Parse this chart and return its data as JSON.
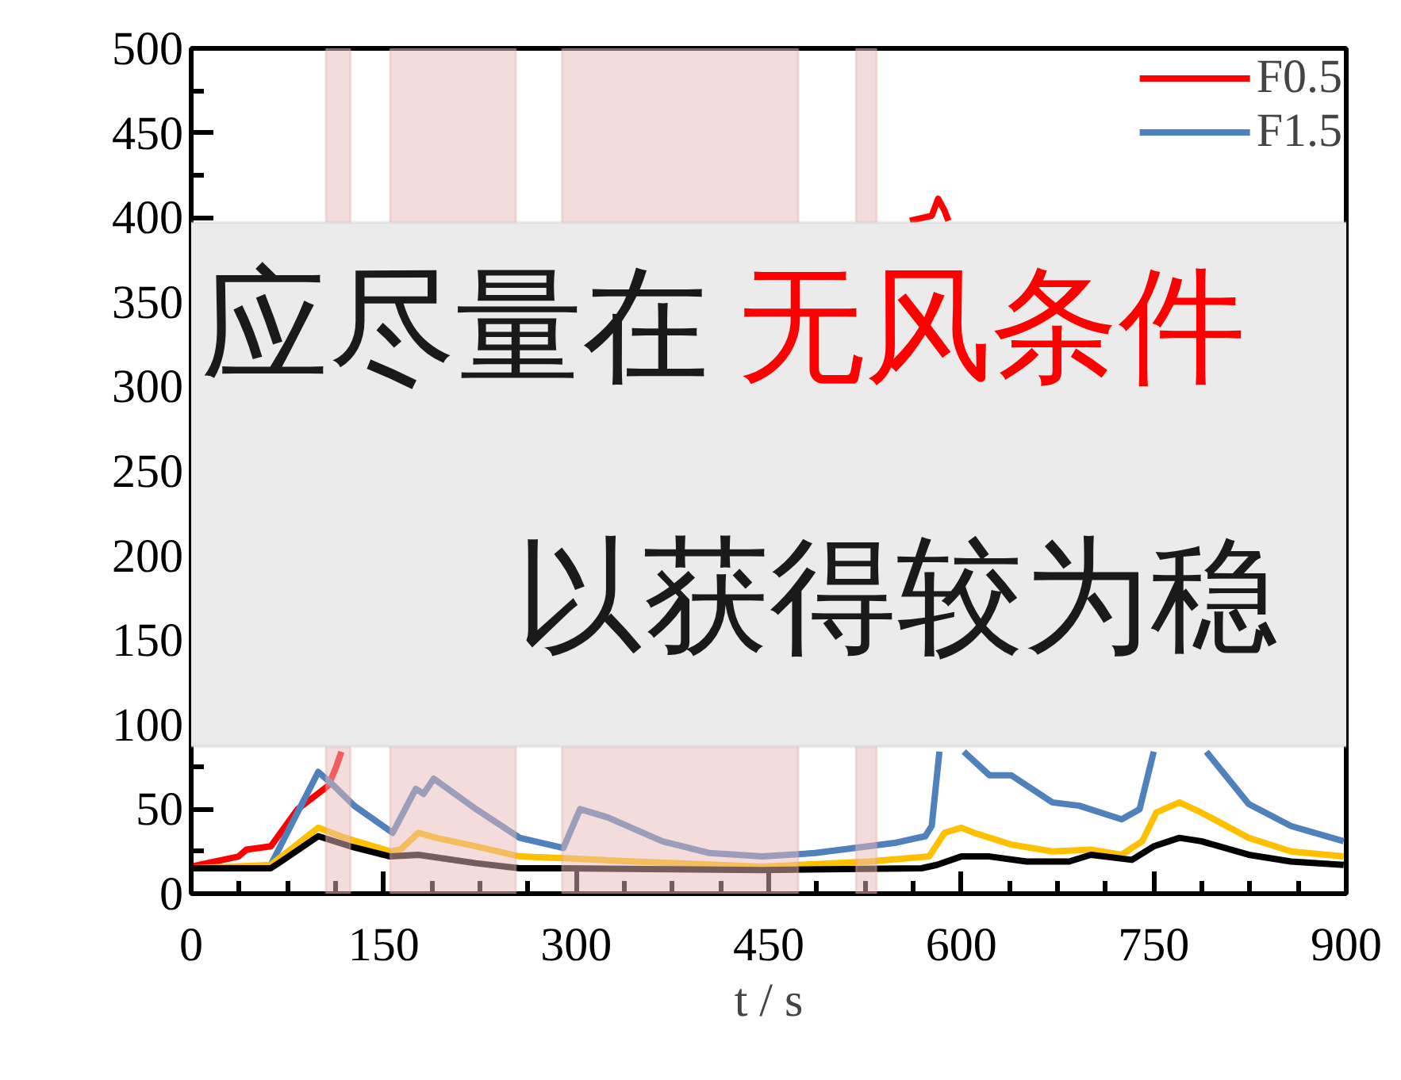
{
  "chart_data": {
    "type": "line",
    "xlabel": "t / s",
    "xlim": [
      0,
      900
    ],
    "xticks": [
      0,
      150,
      300,
      450,
      600,
      750,
      900
    ],
    "ylim": [
      0,
      500
    ],
    "yticks": [
      0,
      50,
      100,
      150,
      200,
      250,
      300,
      350,
      400,
      450,
      500
    ],
    "grid": false,
    "legend": "top right",
    "line_style": "solid",
    "marker": "none",
    "annotations": [
      "应尽量在",
      "无风条件",
      "以获得较为稳"
    ],
    "bands": [
      {
        "axis": "x",
        "from": 105,
        "to": 124,
        "color": "#eab9b9"
      },
      {
        "axis": "x",
        "from": 155,
        "to": 253,
        "color": "#eab9b9"
      },
      {
        "axis": "x",
        "from": 289,
        "to": 473,
        "color": "#eab9b9"
      },
      {
        "axis": "x",
        "from": 518,
        "to": 534,
        "color": "#eab9b9"
      }
    ],
    "series": [
      {
        "name": "F0.5",
        "color": "#ff0000",
        "x": [
          0,
          37,
          43,
          62,
          83,
          107,
          113,
          117,
          118,
          560,
          577,
          582,
          587,
          590
        ],
        "values": [
          16,
          22,
          26,
          28,
          50,
          64,
          75,
          84,
          null,
          398,
          401,
          411,
          404,
          398
        ]
      },
      {
        "name": "F1.5",
        "color": "#4f81bd",
        "x": [
          62,
          99,
          111,
          127,
          157,
          175,
          181,
          189,
          222,
          256,
          290,
          303,
          325,
          367,
          404,
          445,
          486,
          548,
          572,
          577,
          583,
          584,
          601,
          602,
          622,
          639,
          671,
          692,
          725,
          739,
          750,
          751,
          790,
          791,
          824,
          857,
          898
        ],
        "values": [
          17,
          72,
          64,
          52,
          36,
          62,
          59,
          68,
          50,
          33,
          27,
          50,
          45,
          31,
          24,
          22,
          24,
          30,
          34,
          40,
          84,
          null,
          null,
          84,
          70,
          70,
          54,
          52,
          44,
          50,
          84,
          null,
          null,
          84,
          53,
          40,
          31
        ]
      },
      {
        "color": "#ffc000",
        "x": [
          0,
          62,
          99,
          120,
          155,
          163,
          177,
          191,
          222,
          256,
          290,
          346,
          445,
          528,
          575,
          587,
          600,
          610,
          639,
          671,
          701,
          725,
          741,
          752,
          770,
          787,
          824,
          857,
          898
        ],
        "values": [
          15,
          17,
          39,
          33,
          25,
          26,
          36,
          33,
          28,
          22,
          21,
          19,
          16,
          19,
          22,
          36,
          39,
          36,
          29,
          25,
          26,
          23,
          31,
          48,
          54,
          48,
          33,
          25,
          22
        ]
      },
      {
        "color": "#000000",
        "x": [
          0,
          62,
          70,
          99,
          124,
          155,
          177,
          222,
          256,
          290,
          445,
          569,
          581,
          600,
          622,
          651,
          684,
          701,
          733,
          750,
          770,
          787,
          824,
          857,
          898
        ],
        "values": [
          15,
          15,
          19,
          34,
          28,
          22,
          23,
          18,
          15,
          15,
          14,
          15,
          17,
          22,
          22,
          19,
          19,
          23,
          20,
          28,
          33,
          31,
          23,
          19,
          17
        ]
      }
    ]
  }
}
